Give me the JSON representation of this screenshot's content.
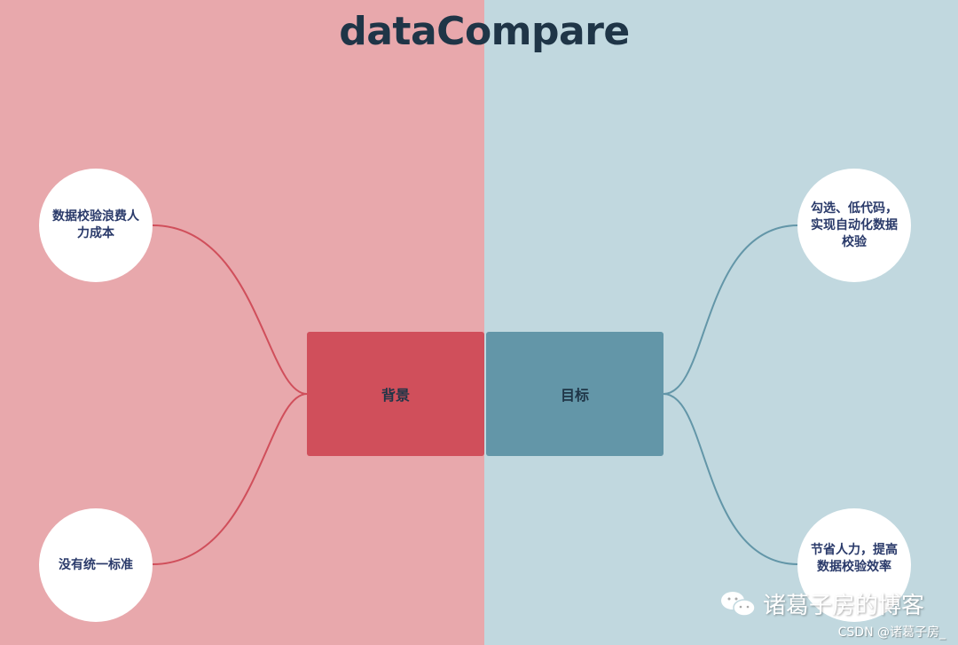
{
  "title": "dataCompare",
  "colors": {
    "left_bg": "#e8a8ac",
    "right_bg": "#c1d8df",
    "left_accent": "#d04f5b",
    "right_accent": "#6396a8"
  },
  "left": {
    "center": "背景",
    "nodes": [
      "数据校验浪费人力成本",
      "没有统一标准"
    ]
  },
  "right": {
    "center": "目标",
    "nodes": [
      "勾选、低代码，实现自动化数据校验",
      "节省人力，提高数据校验效率"
    ]
  },
  "watermark": {
    "icon": "wechat-icon",
    "text": "诸葛子房的博客",
    "csdn": "CSDN @诸葛子房_"
  }
}
